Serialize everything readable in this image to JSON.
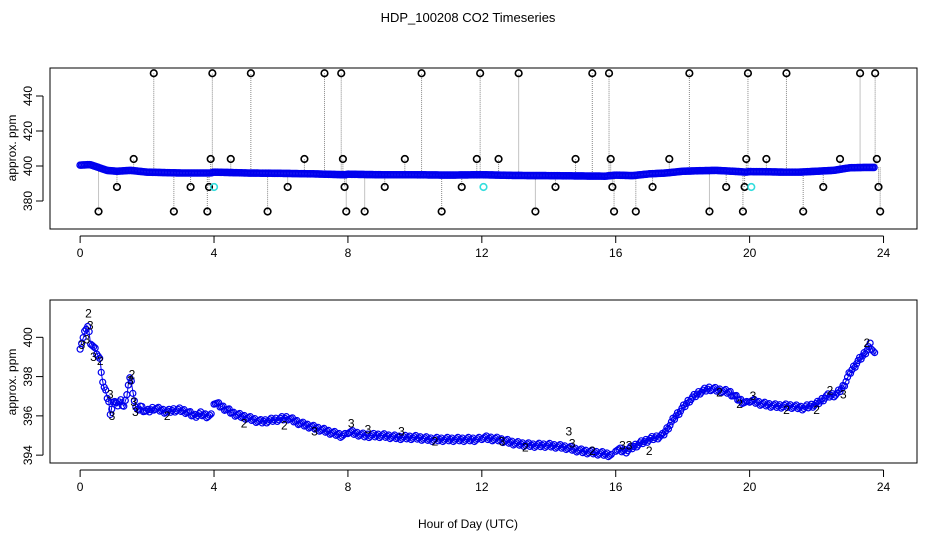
{
  "chart_data": {
    "type": "scatter",
    "title": "HDP_100208  CO2 Timeseries",
    "xlabel": "Hour of Day (UTC)",
    "colors": {
      "points": "#0000ee",
      "outliers": "#000000",
      "flagged": "#33dddd",
      "flag2": "#22aa22",
      "flag3": "#0000cc",
      "connector": "#888888"
    },
    "panels": [
      {
        "name": "top",
        "ylabel": "approx. ppm",
        "xlim": [
          -0.9,
          25
        ],
        "ylim": [
          364,
          456
        ],
        "xticks": [
          0,
          4,
          8,
          12,
          16,
          20,
          24
        ],
        "yticks": [
          380,
          400,
          420,
          440
        ],
        "baseline": [
          [
            0.0,
            400.5
          ],
          [
            0.3,
            400.8
          ],
          [
            0.5,
            399.5
          ],
          [
            0.8,
            397.5
          ],
          [
            1.1,
            397.0
          ],
          [
            1.5,
            397.5
          ],
          [
            2.0,
            396.5
          ],
          [
            3.0,
            396.0
          ],
          [
            3.9,
            396.0
          ],
          [
            4.0,
            396.5
          ],
          [
            5.0,
            396.0
          ],
          [
            6.0,
            395.8
          ],
          [
            7.0,
            395.5
          ],
          [
            7.9,
            395.0
          ],
          [
            8.0,
            395.3
          ],
          [
            9.0,
            395.0
          ],
          [
            10.0,
            395.0
          ],
          [
            11.0,
            394.8
          ],
          [
            12.0,
            395.0
          ],
          [
            13.0,
            394.6
          ],
          [
            14.0,
            394.5
          ],
          [
            15.0,
            394.3
          ],
          [
            15.7,
            394.2
          ],
          [
            16.0,
            394.8
          ],
          [
            16.5,
            394.5
          ],
          [
            17.0,
            395.5
          ],
          [
            17.5,
            396.0
          ],
          [
            18.0,
            397.0
          ],
          [
            18.5,
            397.3
          ],
          [
            19.0,
            397.5
          ],
          [
            19.5,
            397.0
          ],
          [
            19.9,
            396.5
          ],
          [
            20.0,
            396.8
          ],
          [
            20.5,
            396.7
          ],
          [
            21.0,
            396.5
          ],
          [
            21.5,
            396.5
          ],
          [
            22.0,
            397.0
          ],
          [
            22.5,
            397.5
          ],
          [
            23.0,
            399.0
          ],
          [
            23.5,
            399.2
          ],
          [
            23.75,
            399.2
          ]
        ],
        "outliers": [
          {
            "x": 0.55,
            "y": 374
          },
          {
            "x": 1.1,
            "y": 388
          },
          {
            "x": 1.6,
            "y": 404
          },
          {
            "x": 2.2,
            "y": 453
          },
          {
            "x": 2.8,
            "y": 374
          },
          {
            "x": 3.3,
            "y": 388
          },
          {
            "x": 3.8,
            "y": 374
          },
          {
            "x": 3.85,
            "y": 388
          },
          {
            "x": 3.9,
            "y": 404
          },
          {
            "x": 3.95,
            "y": 453
          },
          {
            "x": 4.5,
            "y": 404
          },
          {
            "x": 5.1,
            "y": 453
          },
          {
            "x": 5.6,
            "y": 374
          },
          {
            "x": 6.2,
            "y": 388
          },
          {
            "x": 6.7,
            "y": 404
          },
          {
            "x": 7.3,
            "y": 453
          },
          {
            "x": 7.8,
            "y": 453
          },
          {
            "x": 7.85,
            "y": 404
          },
          {
            "x": 7.9,
            "y": 388
          },
          {
            "x": 7.95,
            "y": 374
          },
          {
            "x": 8.5,
            "y": 374
          },
          {
            "x": 9.1,
            "y": 388
          },
          {
            "x": 9.7,
            "y": 404
          },
          {
            "x": 10.2,
            "y": 453
          },
          {
            "x": 10.8,
            "y": 374
          },
          {
            "x": 11.4,
            "y": 388
          },
          {
            "x": 11.85,
            "y": 404
          },
          {
            "x": 11.95,
            "y": 453
          },
          {
            "x": 12.5,
            "y": 404
          },
          {
            "x": 13.1,
            "y": 453
          },
          {
            "x": 13.6,
            "y": 374
          },
          {
            "x": 14.2,
            "y": 388
          },
          {
            "x": 14.8,
            "y": 404
          },
          {
            "x": 15.3,
            "y": 453
          },
          {
            "x": 15.8,
            "y": 453
          },
          {
            "x": 15.85,
            "y": 404
          },
          {
            "x": 15.9,
            "y": 388
          },
          {
            "x": 15.95,
            "y": 374
          },
          {
            "x": 16.6,
            "y": 374
          },
          {
            "x": 17.1,
            "y": 388
          },
          {
            "x": 17.6,
            "y": 404
          },
          {
            "x": 18.2,
            "y": 453
          },
          {
            "x": 18.8,
            "y": 374
          },
          {
            "x": 19.3,
            "y": 388
          },
          {
            "x": 19.8,
            "y": 374
          },
          {
            "x": 19.85,
            "y": 388
          },
          {
            "x": 19.9,
            "y": 404
          },
          {
            "x": 19.95,
            "y": 453
          },
          {
            "x": 20.5,
            "y": 404
          },
          {
            "x": 21.1,
            "y": 453
          },
          {
            "x": 21.6,
            "y": 374
          },
          {
            "x": 22.2,
            "y": 388
          },
          {
            "x": 22.7,
            "y": 404
          },
          {
            "x": 23.3,
            "y": 453
          },
          {
            "x": 23.75,
            "y": 453
          },
          {
            "x": 23.8,
            "y": 404
          },
          {
            "x": 23.85,
            "y": 388
          },
          {
            "x": 23.9,
            "y": 374
          }
        ],
        "flagged": [
          {
            "x": 4.0,
            "y": 388
          },
          {
            "x": 12.05,
            "y": 388
          },
          {
            "x": 20.05,
            "y": 388
          }
        ]
      },
      {
        "name": "bottom",
        "ylabel": "approx. ppm",
        "xlim": [
          -0.9,
          25
        ],
        "ylim": [
          393.6,
          401.9
        ],
        "xticks": [
          0,
          4,
          8,
          12,
          16,
          20,
          24
        ],
        "yticks": [
          394,
          396,
          398,
          400
        ],
        "series": [
          {
            "x": [
              0.0,
              0.1,
              0.2,
              0.25,
              0.3,
              0.4,
              0.5,
              0.6,
              0.65,
              0.7,
              0.75,
              0.8,
              0.85,
              0.9,
              0.95,
              1.0,
              1.1,
              1.2,
              1.3,
              1.4,
              1.45,
              1.5,
              1.55,
              1.6,
              1.65,
              1.7,
              1.8,
              1.9,
              2.0,
              2.2,
              2.4,
              2.6,
              2.8,
              3.0,
              3.2,
              3.4,
              3.6,
              3.8,
              3.95
            ],
            "y": [
              399.5,
              400.0,
              400.6,
              400.5,
              399.8,
              399.5,
              399.2,
              398.8,
              398.0,
              397.5,
              397.3,
              397.0,
              396.8,
              396.0,
              396.5,
              396.8,
              396.5,
              396.8,
              396.5,
              397.0,
              397.8,
              398.0,
              397.5,
              397.0,
              396.5,
              396.2,
              396.5,
              396.3,
              396.2,
              396.4,
              396.3,
              396.2,
              396.3,
              396.3,
              396.2,
              396.0,
              396.1,
              396.0,
              396.0
            ]
          },
          {
            "x": [
              4.0,
              4.3,
              4.6,
              5.0,
              5.4,
              5.8,
              6.2,
              6.6,
              7.0,
              7.4,
              7.8,
              7.95
            ],
            "y": [
              396.7,
              396.4,
              396.1,
              395.9,
              395.7,
              395.8,
              395.9,
              395.6,
              395.4,
              395.2,
              395.0,
              395.0
            ]
          },
          {
            "x": [
              8.0,
              8.5,
              9.0,
              9.5,
              10.0,
              10.5,
              11.0,
              11.5,
              11.95
            ],
            "y": [
              395.2,
              395.0,
              395.0,
              394.9,
              394.9,
              394.8,
              394.8,
              394.8,
              394.8
            ]
          },
          {
            "x": [
              12.0,
              12.5,
              13.0,
              13.5,
              14.0,
              14.5,
              15.0,
              15.5,
              15.9
            ],
            "y": [
              394.9,
              394.8,
              394.6,
              394.5,
              394.5,
              394.4,
              394.2,
              394.1,
              394.0
            ]
          },
          {
            "x": [
              16.0,
              16.3,
              16.6,
              17.0,
              17.4,
              17.8,
              18.2,
              18.5,
              18.8,
              19.1,
              19.4,
              19.7,
              19.95
            ],
            "y": [
              394.3,
              394.2,
              394.5,
              394.8,
              395.0,
              396.0,
              396.8,
              397.2,
              397.4,
              397.3,
              397.2,
              396.8,
              396.6
            ]
          },
          {
            "x": [
              20.0,
              20.4,
              20.8,
              21.2,
              21.6,
              22.0,
              22.3,
              22.6,
              22.8,
              23.0,
              23.2,
              23.4,
              23.6,
              23.75
            ],
            "y": [
              396.8,
              396.6,
              396.5,
              396.5,
              396.4,
              396.6,
              397.0,
              397.1,
              397.5,
              398.2,
              398.7,
              399.1,
              399.6,
              399.1
            ]
          }
        ],
        "labels": [
          {
            "x": 0.05,
            "y": 399.6,
            "text": "3",
            "flag": "3"
          },
          {
            "x": 0.2,
            "y": 399.9,
            "text": "3",
            "flag": "3"
          },
          {
            "x": 0.25,
            "y": 401.2,
            "text": "2",
            "flag": "2"
          },
          {
            "x": 0.3,
            "y": 400.6,
            "text": "3",
            "flag": "3"
          },
          {
            "x": 0.4,
            "y": 399.0,
            "text": "3",
            "flag": "3"
          },
          {
            "x": 0.6,
            "y": 398.8,
            "text": "2",
            "flag": "2"
          },
          {
            "x": 0.9,
            "y": 397.1,
            "text": "3",
            "flag": "3"
          },
          {
            "x": 0.95,
            "y": 396.0,
            "text": "3",
            "flag": "3"
          },
          {
            "x": 1.5,
            "y": 397.8,
            "text": "3",
            "flag": "3"
          },
          {
            "x": 1.55,
            "y": 398.1,
            "text": "2",
            "flag": "2"
          },
          {
            "x": 1.6,
            "y": 396.7,
            "text": "3",
            "flag": "3"
          },
          {
            "x": 1.65,
            "y": 396.2,
            "text": "3",
            "flag": "3"
          },
          {
            "x": 2.6,
            "y": 396.0,
            "text": "2",
            "flag": "2"
          },
          {
            "x": 4.9,
            "y": 395.6,
            "text": "2",
            "flag": "2"
          },
          {
            "x": 6.1,
            "y": 395.5,
            "text": "2",
            "flag": "2"
          },
          {
            "x": 7.0,
            "y": 395.2,
            "text": "3",
            "flag": "3"
          },
          {
            "x": 8.1,
            "y": 395.6,
            "text": "3",
            "flag": "3"
          },
          {
            "x": 8.6,
            "y": 395.3,
            "text": "3",
            "flag": "3"
          },
          {
            "x": 9.6,
            "y": 395.2,
            "text": "3",
            "flag": "3"
          },
          {
            "x": 10.6,
            "y": 394.7,
            "text": "2",
            "flag": "2"
          },
          {
            "x": 12.6,
            "y": 394.7,
            "text": "3",
            "flag": "3"
          },
          {
            "x": 13.3,
            "y": 394.4,
            "text": "2",
            "flag": "2"
          },
          {
            "x": 14.6,
            "y": 395.2,
            "text": "3",
            "flag": "3"
          },
          {
            "x": 14.7,
            "y": 394.6,
            "text": "3",
            "flag": "3"
          },
          {
            "x": 15.3,
            "y": 394.2,
            "text": "2",
            "flag": "2"
          },
          {
            "x": 16.2,
            "y": 394.5,
            "text": "3",
            "flag": "3"
          },
          {
            "x": 16.4,
            "y": 394.5,
            "text": "3",
            "flag": "3"
          },
          {
            "x": 17.0,
            "y": 394.2,
            "text": "2",
            "flag": "2"
          },
          {
            "x": 19.1,
            "y": 397.2,
            "text": "2",
            "flag": "2"
          },
          {
            "x": 19.7,
            "y": 396.6,
            "text": "2",
            "flag": "2"
          },
          {
            "x": 20.1,
            "y": 397.0,
            "text": "3",
            "flag": "3"
          },
          {
            "x": 21.1,
            "y": 396.3,
            "text": "2",
            "flag": "2"
          },
          {
            "x": 22.0,
            "y": 396.3,
            "text": "2",
            "flag": "2"
          },
          {
            "x": 22.4,
            "y": 397.3,
            "text": "2",
            "flag": "2"
          },
          {
            "x": 22.8,
            "y": 397.1,
            "text": "3",
            "flag": "3"
          },
          {
            "x": 23.5,
            "y": 399.7,
            "text": "2",
            "flag": "2"
          }
        ]
      }
    ]
  }
}
